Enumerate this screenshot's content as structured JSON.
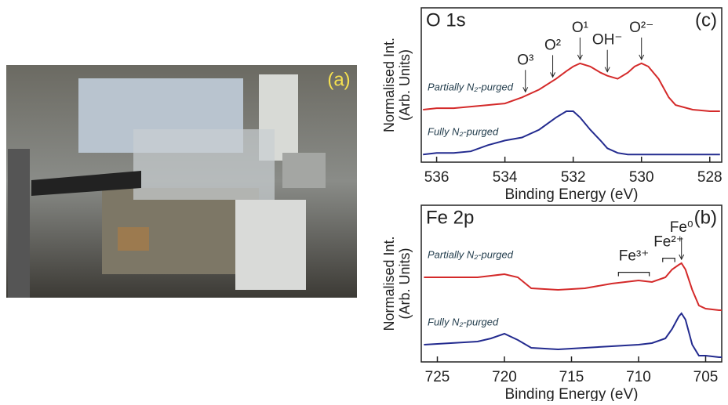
{
  "photo": {
    "label": "(a)"
  },
  "chart_data": [
    {
      "type": "line",
      "title": "O 1s",
      "panel": "(c)",
      "xlabel": "Binding Energy (eV)",
      "ylabel": [
        "Normalised Int.",
        "(Arb. Units)"
      ],
      "xlim": [
        536.45,
        527.65
      ],
      "xticks": [
        536,
        534,
        532,
        530,
        528
      ],
      "ylim": [
        0,
        1
      ],
      "x": [
        536.4,
        536,
        535.5,
        535,
        534.5,
        534,
        533.5,
        533,
        532.5,
        532.2,
        532,
        531.8,
        531.5,
        531.2,
        531,
        530.7,
        530.4,
        530.2,
        530,
        529.8,
        529.5,
        529.2,
        529,
        528.5,
        528,
        527.7
      ],
      "series": [
        {
          "name": "Partially N₂-purged",
          "color": "#d42a2a",
          "values": [
            0.34,
            0.35,
            0.35,
            0.36,
            0.37,
            0.38,
            0.42,
            0.47,
            0.54,
            0.59,
            0.62,
            0.64,
            0.62,
            0.58,
            0.56,
            0.54,
            0.58,
            0.62,
            0.64,
            0.62,
            0.54,
            0.42,
            0.37,
            0.34,
            0.33,
            0.33
          ]
        },
        {
          "name": "Fully N₂-purged",
          "color": "#232b8f",
          "values": [
            0.05,
            0.06,
            0.06,
            0.07,
            0.11,
            0.14,
            0.16,
            0.21,
            0.29,
            0.33,
            0.33,
            0.29,
            0.21,
            0.14,
            0.09,
            0.06,
            0.05,
            0.05,
            0.05,
            0.05,
            0.05,
            0.05,
            0.05,
            0.05,
            0.05,
            0.05
          ]
        }
      ],
      "annotations": [
        {
          "text": "O³",
          "x": 533.4
        },
        {
          "text": "O²",
          "x": 532.6
        },
        {
          "text": "O¹",
          "x": 531.8
        },
        {
          "text": "OH⁻",
          "x": 531.0
        },
        {
          "text": "O²⁻",
          "x": 530.0
        }
      ]
    },
    {
      "type": "line",
      "title": "Fe 2p",
      "panel": "(b)",
      "xlabel": "Binding Energy (eV)",
      "ylabel": [
        "Normalised Int.",
        "(Arb. Units)"
      ],
      "xlim": [
        726.2,
        703.8
      ],
      "xticks": [
        725,
        720,
        715,
        710,
        705
      ],
      "ylim": [
        0,
        1
      ],
      "x": [
        726,
        724,
        722,
        721,
        720,
        719,
        718,
        716,
        714,
        712,
        710,
        709,
        708,
        707.5,
        707,
        706.8,
        706.5,
        706,
        705.5,
        705,
        704,
        703.8
      ],
      "series": [
        {
          "name": "Partially N₂-purged",
          "color": "#d42a2a",
          "values": [
            0.54,
            0.54,
            0.54,
            0.55,
            0.56,
            0.54,
            0.47,
            0.46,
            0.47,
            0.5,
            0.52,
            0.51,
            0.54,
            0.59,
            0.62,
            0.63,
            0.59,
            0.46,
            0.36,
            0.34,
            0.33,
            0.33
          ]
        },
        {
          "name": "Fully N₂-purged",
          "color": "#232b8f",
          "values": [
            0.11,
            0.12,
            0.13,
            0.15,
            0.18,
            0.14,
            0.09,
            0.08,
            0.09,
            0.1,
            0.11,
            0.12,
            0.15,
            0.21,
            0.29,
            0.31,
            0.27,
            0.11,
            0.04,
            0.04,
            0.03,
            0.03
          ]
        }
      ],
      "annotations": [
        {
          "text": "Fe³⁺",
          "range": [
            711.5,
            709.2
          ]
        },
        {
          "text": "Fe²⁺",
          "range": [
            708.2,
            707.3
          ]
        },
        {
          "text": "Fe⁰",
          "x": 706.8
        }
      ]
    }
  ]
}
